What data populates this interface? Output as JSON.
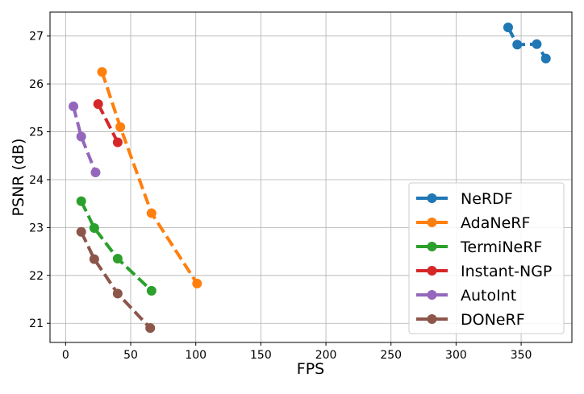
{
  "chart_data": {
    "type": "line",
    "title": "",
    "xlabel": "FPS",
    "ylabel": "PSNR (dB)",
    "xlim": [
      -12,
      389
    ],
    "ylim": [
      20.6,
      27.5
    ],
    "xticks": [
      0,
      50,
      100,
      150,
      200,
      250,
      300,
      350
    ],
    "yticks": [
      21,
      22,
      23,
      24,
      25,
      26,
      27
    ],
    "grid": true,
    "legend_position": "lower-right",
    "series": [
      {
        "name": "NeRDF",
        "color": "#1f77b4",
        "line_style": "dashed",
        "x": [
          340,
          347,
          362,
          369
        ],
        "y": [
          27.18,
          26.82,
          26.83,
          26.53
        ]
      },
      {
        "name": "AdaNeRF",
        "color": "#ff7f0e",
        "line_style": "dashed",
        "x": [
          28,
          42,
          66,
          101
        ],
        "y": [
          26.25,
          25.1,
          23.3,
          21.83
        ]
      },
      {
        "name": "TermiNeRF",
        "color": "#2ca02c",
        "line_style": "dashed",
        "x": [
          12,
          22,
          40,
          66
        ],
        "y": [
          23.55,
          22.99,
          22.35,
          21.68
        ]
      },
      {
        "name": "Instant-NGP",
        "color": "#d62728",
        "line_style": "dashed",
        "x": [
          25,
          40
        ],
        "y": [
          25.58,
          24.78
        ]
      },
      {
        "name": "AutoInt",
        "color": "#9467bd",
        "line_style": "dashed",
        "x": [
          6,
          12,
          23
        ],
        "y": [
          25.53,
          24.9,
          24.15
        ]
      },
      {
        "name": "DONeRF",
        "color": "#8c564b",
        "line_style": "dashed",
        "x": [
          12,
          22,
          40,
          65
        ],
        "y": [
          22.91,
          22.34,
          21.62,
          20.9
        ]
      }
    ]
  }
}
